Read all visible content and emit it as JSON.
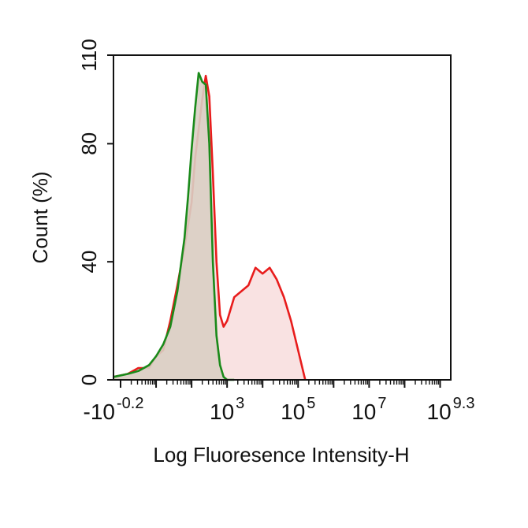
{
  "chart_data": {
    "type": "area",
    "xlabel": "Log Fluoresence Intensity-H",
    "ylabel": "Count  (%)",
    "x_scale": "log",
    "xlim_exponent": [
      -0.2,
      9.3
    ],
    "ylim": [
      0,
      110
    ],
    "y_ticks": [
      {
        "value": 0,
        "label": "0"
      },
      {
        "value": 40,
        "label": "40"
      },
      {
        "value": 80,
        "label": "80"
      },
      {
        "value": 110,
        "label": "110"
      }
    ],
    "x_ticks": [
      {
        "exp": -0.2,
        "base": "-10",
        "sup": "-0.2"
      },
      {
        "exp": 3,
        "base": "10",
        "sup": "3"
      },
      {
        "exp": 5,
        "base": "10",
        "sup": "5"
      },
      {
        "exp": 7,
        "base": "10",
        "sup": "7"
      },
      {
        "exp": 9.3,
        "base": "10",
        "sup": "9.3"
      }
    ],
    "grid": false,
    "series": [
      {
        "color": "#1a8a1a",
        "fill": "#d9cfc4",
        "x_log10": [
          -0.2,
          0.2,
          0.5,
          0.8,
          1.0,
          1.2,
          1.4,
          1.6,
          1.8,
          1.9,
          2.0,
          2.1,
          2.2,
          2.3,
          2.4,
          2.5,
          2.6,
          2.7,
          2.8,
          2.9,
          3.0,
          3.1,
          3.2
        ],
        "y": [
          1,
          2,
          3,
          5,
          8,
          12,
          18,
          30,
          48,
          62,
          78,
          92,
          104,
          101,
          100,
          80,
          40,
          15,
          5,
          1,
          0,
          0,
          0
        ]
      },
      {
        "color": "#e81c1c",
        "fill": "#f8dddd",
        "x_log10": [
          -0.2,
          0.2,
          0.5,
          0.8,
          1.0,
          1.2,
          1.4,
          1.6,
          1.8,
          2.0,
          2.1,
          2.2,
          2.3,
          2.4,
          2.5,
          2.6,
          2.7,
          2.8,
          2.9,
          3.0,
          3.2,
          3.4,
          3.6,
          3.8,
          4.0,
          4.2,
          4.4,
          4.6,
          4.8,
          5.0,
          5.2
        ],
        "y": [
          1,
          2,
          4,
          4,
          8,
          10,
          20,
          32,
          45,
          60,
          75,
          85,
          95,
          103,
          96,
          70,
          40,
          22,
          18,
          20,
          28,
          30,
          32,
          38,
          36,
          38,
          34,
          28,
          20,
          10,
          0
        ]
      }
    ]
  }
}
